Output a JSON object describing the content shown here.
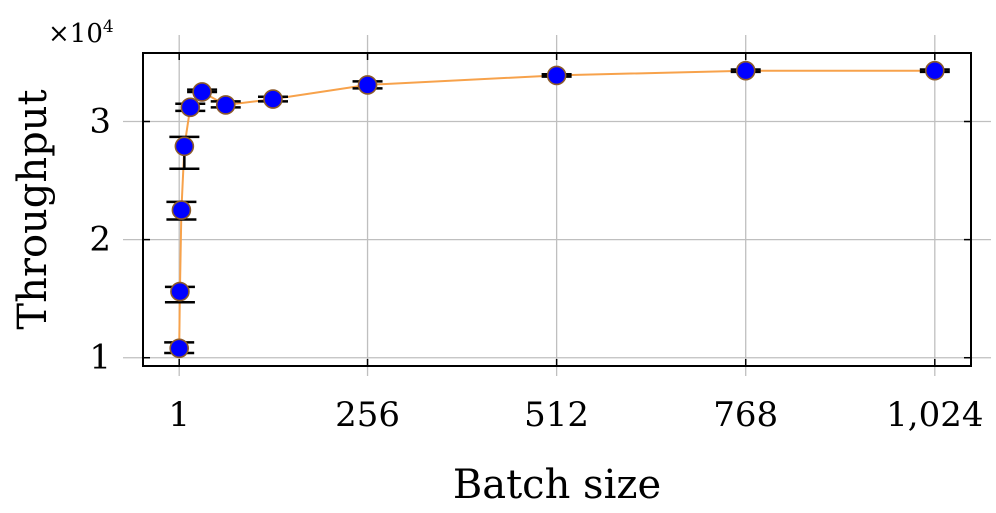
{
  "chart_data": {
    "type": "line",
    "title": "",
    "xlabel": "Batch size",
    "ylabel": "Throughput",
    "y_scale_note": "×10",
    "y_scale_exponent": "4",
    "xlim": [
      -48,
      1073
    ],
    "ylim": [
      0.93,
      3.58
    ],
    "x_ticks": [
      1,
      256,
      512,
      768,
      1024
    ],
    "x_tick_labels": [
      "1",
      "256",
      "512",
      "768",
      "1,024"
    ],
    "y_ticks": [
      1,
      2,
      3
    ],
    "y_tick_labels": [
      "1",
      "2",
      "3"
    ],
    "grid": true,
    "series": [
      {
        "x": [
          1,
          2,
          4,
          8,
          16,
          32,
          64,
          128,
          256,
          512,
          768,
          1024
        ],
        "y": [
          1.08,
          1.56,
          2.25,
          2.79,
          3.12,
          3.25,
          3.14,
          3.19,
          3.31,
          3.39,
          3.43,
          3.43
        ],
        "err_low": [
          1.04,
          1.47,
          2.17,
          2.6,
          3.09,
          3.25,
          3.12,
          3.17,
          3.28,
          3.38,
          3.42,
          3.42
        ],
        "err_high": [
          1.13,
          1.6,
          2.32,
          2.87,
          3.15,
          3.27,
          3.17,
          3.21,
          3.34,
          3.4,
          3.44,
          3.44
        ]
      }
    ],
    "colors": {
      "line": "#f7a24b",
      "marker_fill": "#0000ff",
      "marker_edge": "#8b5a2b",
      "error_bar": "#000000",
      "grid": "#bfbfbf"
    }
  }
}
